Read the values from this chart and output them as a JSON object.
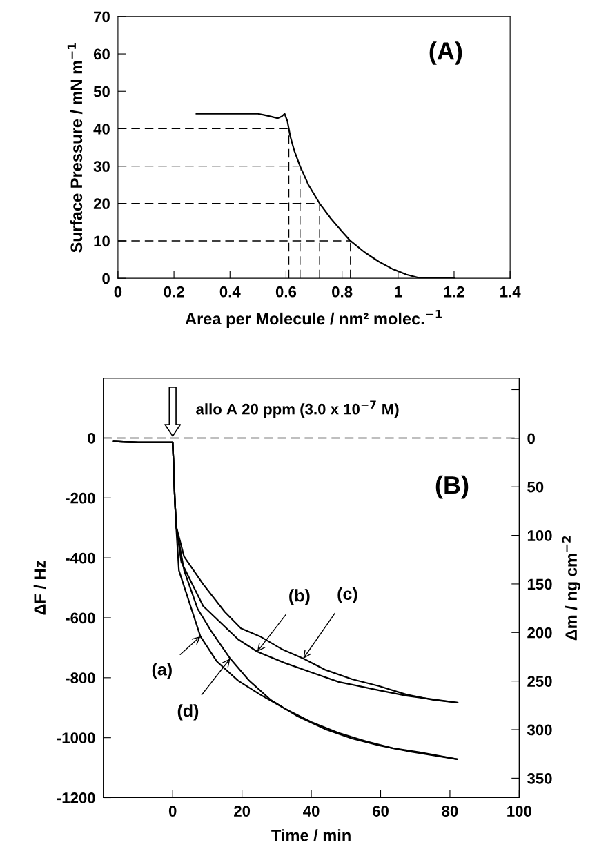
{
  "chart_data": [
    {
      "type": "line",
      "xlabel": "Area per Molecule / nm² molec.$^{−1}$",
      "ylabel": "Surface Pressure / mN m$^{−1}$",
      "annotations": [
        "(A)"
      ],
      "x": [
        0.28,
        0.4,
        0.5,
        0.52,
        0.55,
        0.57,
        0.585,
        0.595,
        0.605,
        0.615,
        0.63,
        0.65,
        0.68,
        0.72,
        0.76,
        0.8,
        0.83,
        0.88,
        0.93,
        0.98,
        1.03,
        1.08,
        1.2
      ],
      "series": [
        {
          "color": "#000000",
          "values": [
            44,
            44,
            44,
            43.7,
            43.2,
            42.8,
            43.3,
            44,
            42,
            38,
            34,
            30,
            25,
            20,
            16,
            12.5,
            10,
            7,
            4.5,
            2.5,
            1,
            0,
            0
          ]
        }
      ],
      "xlim": [
        0,
        1.4
      ],
      "xticks": [
        0,
        0.2,
        0.4,
        0.6,
        0.8,
        1,
        1.2,
        1.4
      ],
      "ylim": [
        0,
        70
      ],
      "yticks": [
        0,
        10,
        20,
        30,
        40,
        50,
        60,
        70
      ],
      "ref_lines": [
        {
          "axis": "y",
          "value": 40,
          "line_style": "dashed"
        },
        {
          "axis": "y",
          "value": 30,
          "line_style": "dashed"
        },
        {
          "axis": "y",
          "value": 20,
          "line_style": "dashed"
        },
        {
          "axis": "y",
          "value": 10,
          "line_style": "dashed"
        },
        {
          "axis": "x",
          "value": 0.61,
          "line_style": "dashed"
        },
        {
          "axis": "x",
          "value": 0.65,
          "line_style": "dashed"
        },
        {
          "axis": "x",
          "value": 0.72,
          "line_style": "dashed"
        },
        {
          "axis": "x",
          "value": 0.83,
          "line_style": "dashed"
        }
      ],
      "grid": false,
      "legend": false,
      "line_style": "solid",
      "marker": "none"
    },
    {
      "type": "line",
      "xlabel": "Time / min",
      "ylabel": "ΔF / Hz",
      "y2label": "Δm / ng cm$^{−2}$",
      "annotations": [
        "(B)",
        {
          "text": "allo A 20 ppm (3.0 x 10$^{−7}$ M)",
          "x": 0,
          "y": 0
        },
        {
          "text": "(a)",
          "x": 8,
          "y": -662
        },
        {
          "text": "(b)",
          "x": 24.4,
          "y": -713
        },
        {
          "text": "(c)",
          "x": 37.7,
          "y": -736
        },
        {
          "text": "(d)",
          "x": 16.6,
          "y": -736
        }
      ],
      "series": [
        {
          "color": "#000000",
          "x": [
            -17,
            -10,
            -5,
            0,
            0.2,
            0.6,
            1.0,
            1.8,
            4.9,
            8,
            12.7,
            18.9,
            25.2,
            32.2,
            40,
            47.9,
            55.7,
            63.5,
            71.3,
            82.2
          ],
          "values": [
            -12,
            -15,
            -15,
            -15,
            -69,
            -200,
            -294,
            -442,
            -552,
            -662,
            -745,
            -810,
            -856,
            -902,
            -948,
            -984,
            -1012,
            -1035,
            -1049,
            -1072
          ]
        },
        {
          "color": "#000000",
          "x": [
            -17,
            -10,
            -5,
            0,
            0.2,
            0.6,
            1.0,
            2.5,
            8.8,
            18.9,
            24.4,
            32.2,
            40,
            47.9,
            59.6,
            67.4,
            82.2
          ],
          "values": [
            -12,
            -15,
            -15,
            -15,
            -69,
            -200,
            -294,
            -414,
            -561,
            -672,
            -713,
            -750,
            -782,
            -814,
            -842,
            -860,
            -883
          ]
        },
        {
          "color": "#000000",
          "x": [
            -17,
            -10,
            -5,
            0,
            0.2,
            0.6,
            1.0,
            3.3,
            8.8,
            15,
            19.7,
            25.2,
            31.4,
            37.7,
            43.9,
            51.8,
            59.6,
            67.4,
            75.2,
            82.2
          ],
          "values": [
            -12,
            -15,
            -15,
            -15,
            -69,
            -200,
            -294,
            -396,
            -488,
            -580,
            -635,
            -662,
            -704,
            -736,
            -773,
            -805,
            -828,
            -856,
            -874,
            -883
          ]
        },
        {
          "color": "#000000",
          "x": [
            -17,
            -10,
            -5,
            0,
            0.2,
            0.6,
            1.0,
            3.3,
            7.2,
            11.1,
            16.6,
            22.1,
            28.3,
            36.1,
            43.9,
            51.8,
            59.6,
            67.4,
            82.2
          ],
          "values": [
            -12,
            -15,
            -15,
            -15,
            -69,
            -200,
            -294,
            -442,
            -570,
            -644,
            -736,
            -810,
            -874,
            -929,
            -971,
            -1003,
            -1026,
            -1044,
            -1072
          ]
        }
      ],
      "xlim": [
        -20,
        100
      ],
      "xticks": [
        0,
        20,
        40,
        60,
        80,
        100
      ],
      "ylim": [
        -1200,
        200
      ],
      "yticks": [
        -1200,
        -1000,
        -800,
        -600,
        -400,
        -200,
        0
      ],
      "y2lim": [
        370,
        -62
      ],
      "y2ticks": [
        {
          "value": -50,
          "label": null
        },
        0,
        50,
        100,
        150,
        200,
        250,
        300,
        350
      ],
      "ref_lines": [
        {
          "axis": "y",
          "value": 0,
          "line_style": "dashed"
        }
      ],
      "grid": false,
      "legend": false,
      "line_style": "solid",
      "marker": "none"
    }
  ]
}
